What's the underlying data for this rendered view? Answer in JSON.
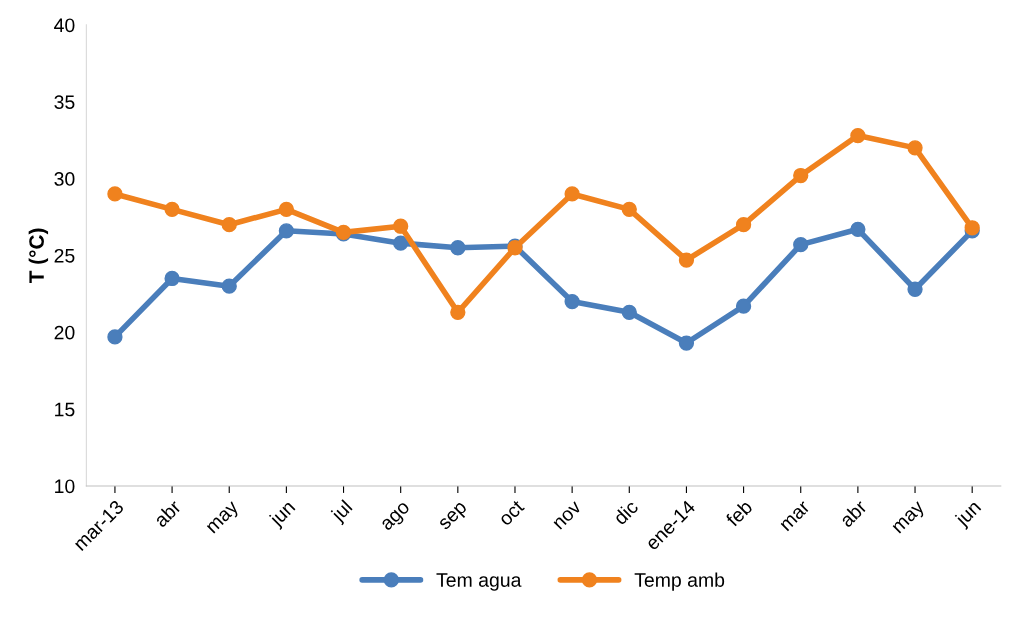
{
  "chart_data": {
    "type": "line",
    "ylabel": "T (°C)",
    "categories": [
      "mar-13",
      "abr",
      "may",
      "jun",
      "jul",
      "ago",
      "sep",
      "oct",
      "nov",
      "dic",
      "ene-14",
      "feb",
      "mar",
      "abr",
      "may",
      "jun"
    ],
    "series": [
      {
        "name": "Tem agua",
        "color": "#4a7ebb",
        "values": [
          19.7,
          23.5,
          23.0,
          26.6,
          26.4,
          25.8,
          25.5,
          25.6,
          22.0,
          21.3,
          19.3,
          21.7,
          25.7,
          26.7,
          22.8,
          26.6
        ]
      },
      {
        "name": "Temp amb",
        "color": "#f0821e",
        "values": [
          29.0,
          28.0,
          27.0,
          28.0,
          26.5,
          26.9,
          21.3,
          25.5,
          29.0,
          28.0,
          24.7,
          27.0,
          30.2,
          32.8,
          32.0,
          26.8
        ]
      }
    ],
    "ylim": [
      10,
      40
    ],
    "yticks": [
      10,
      15,
      20,
      25,
      30,
      35,
      40
    ],
    "grid": false,
    "legend": "bottom",
    "marker": "circle",
    "line_style": "solid"
  }
}
